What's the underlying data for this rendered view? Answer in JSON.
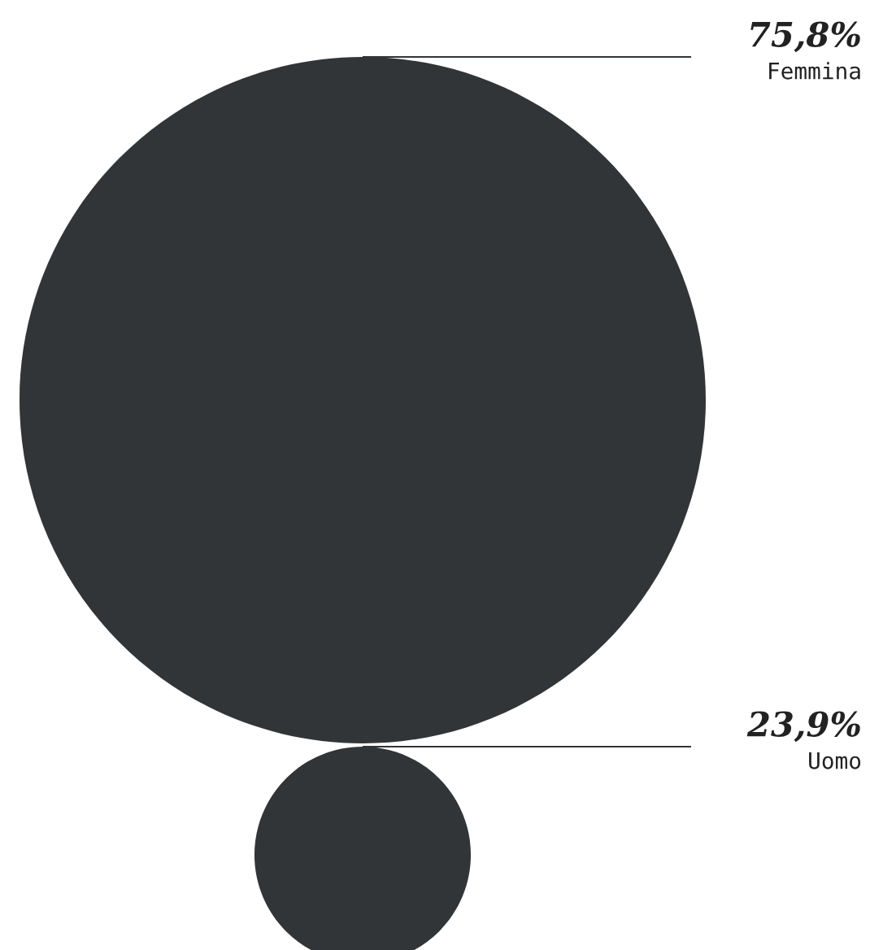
{
  "chart_data": {
    "type": "other",
    "categories": [
      "Femmina",
      "Uomo"
    ],
    "values": [
      75.8,
      23.9
    ],
    "value_labels": [
      "75,8%",
      "23,9%"
    ],
    "color": "#323538"
  }
}
